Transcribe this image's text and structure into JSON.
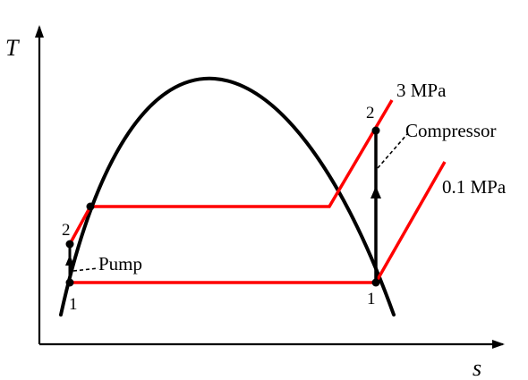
{
  "axes": {
    "y_label": "T",
    "x_label": "s"
  },
  "pressures": {
    "high": "3 MPa",
    "low": "0.1 MPa"
  },
  "devices": {
    "pump": "Pump",
    "compressor": "Compressor"
  },
  "states": {
    "pump_inlet": "1",
    "pump_outlet": "2",
    "compressor_inlet": "1",
    "compressor_outlet": "2"
  },
  "colors": {
    "dome": "#000000",
    "isobar": "#ff0000",
    "process": "#000000",
    "axis": "#000000"
  },
  "icons": {
    "axis_arrow": "arrowhead",
    "process_arrow": "arrowhead",
    "state_point": "filled-dot"
  }
}
